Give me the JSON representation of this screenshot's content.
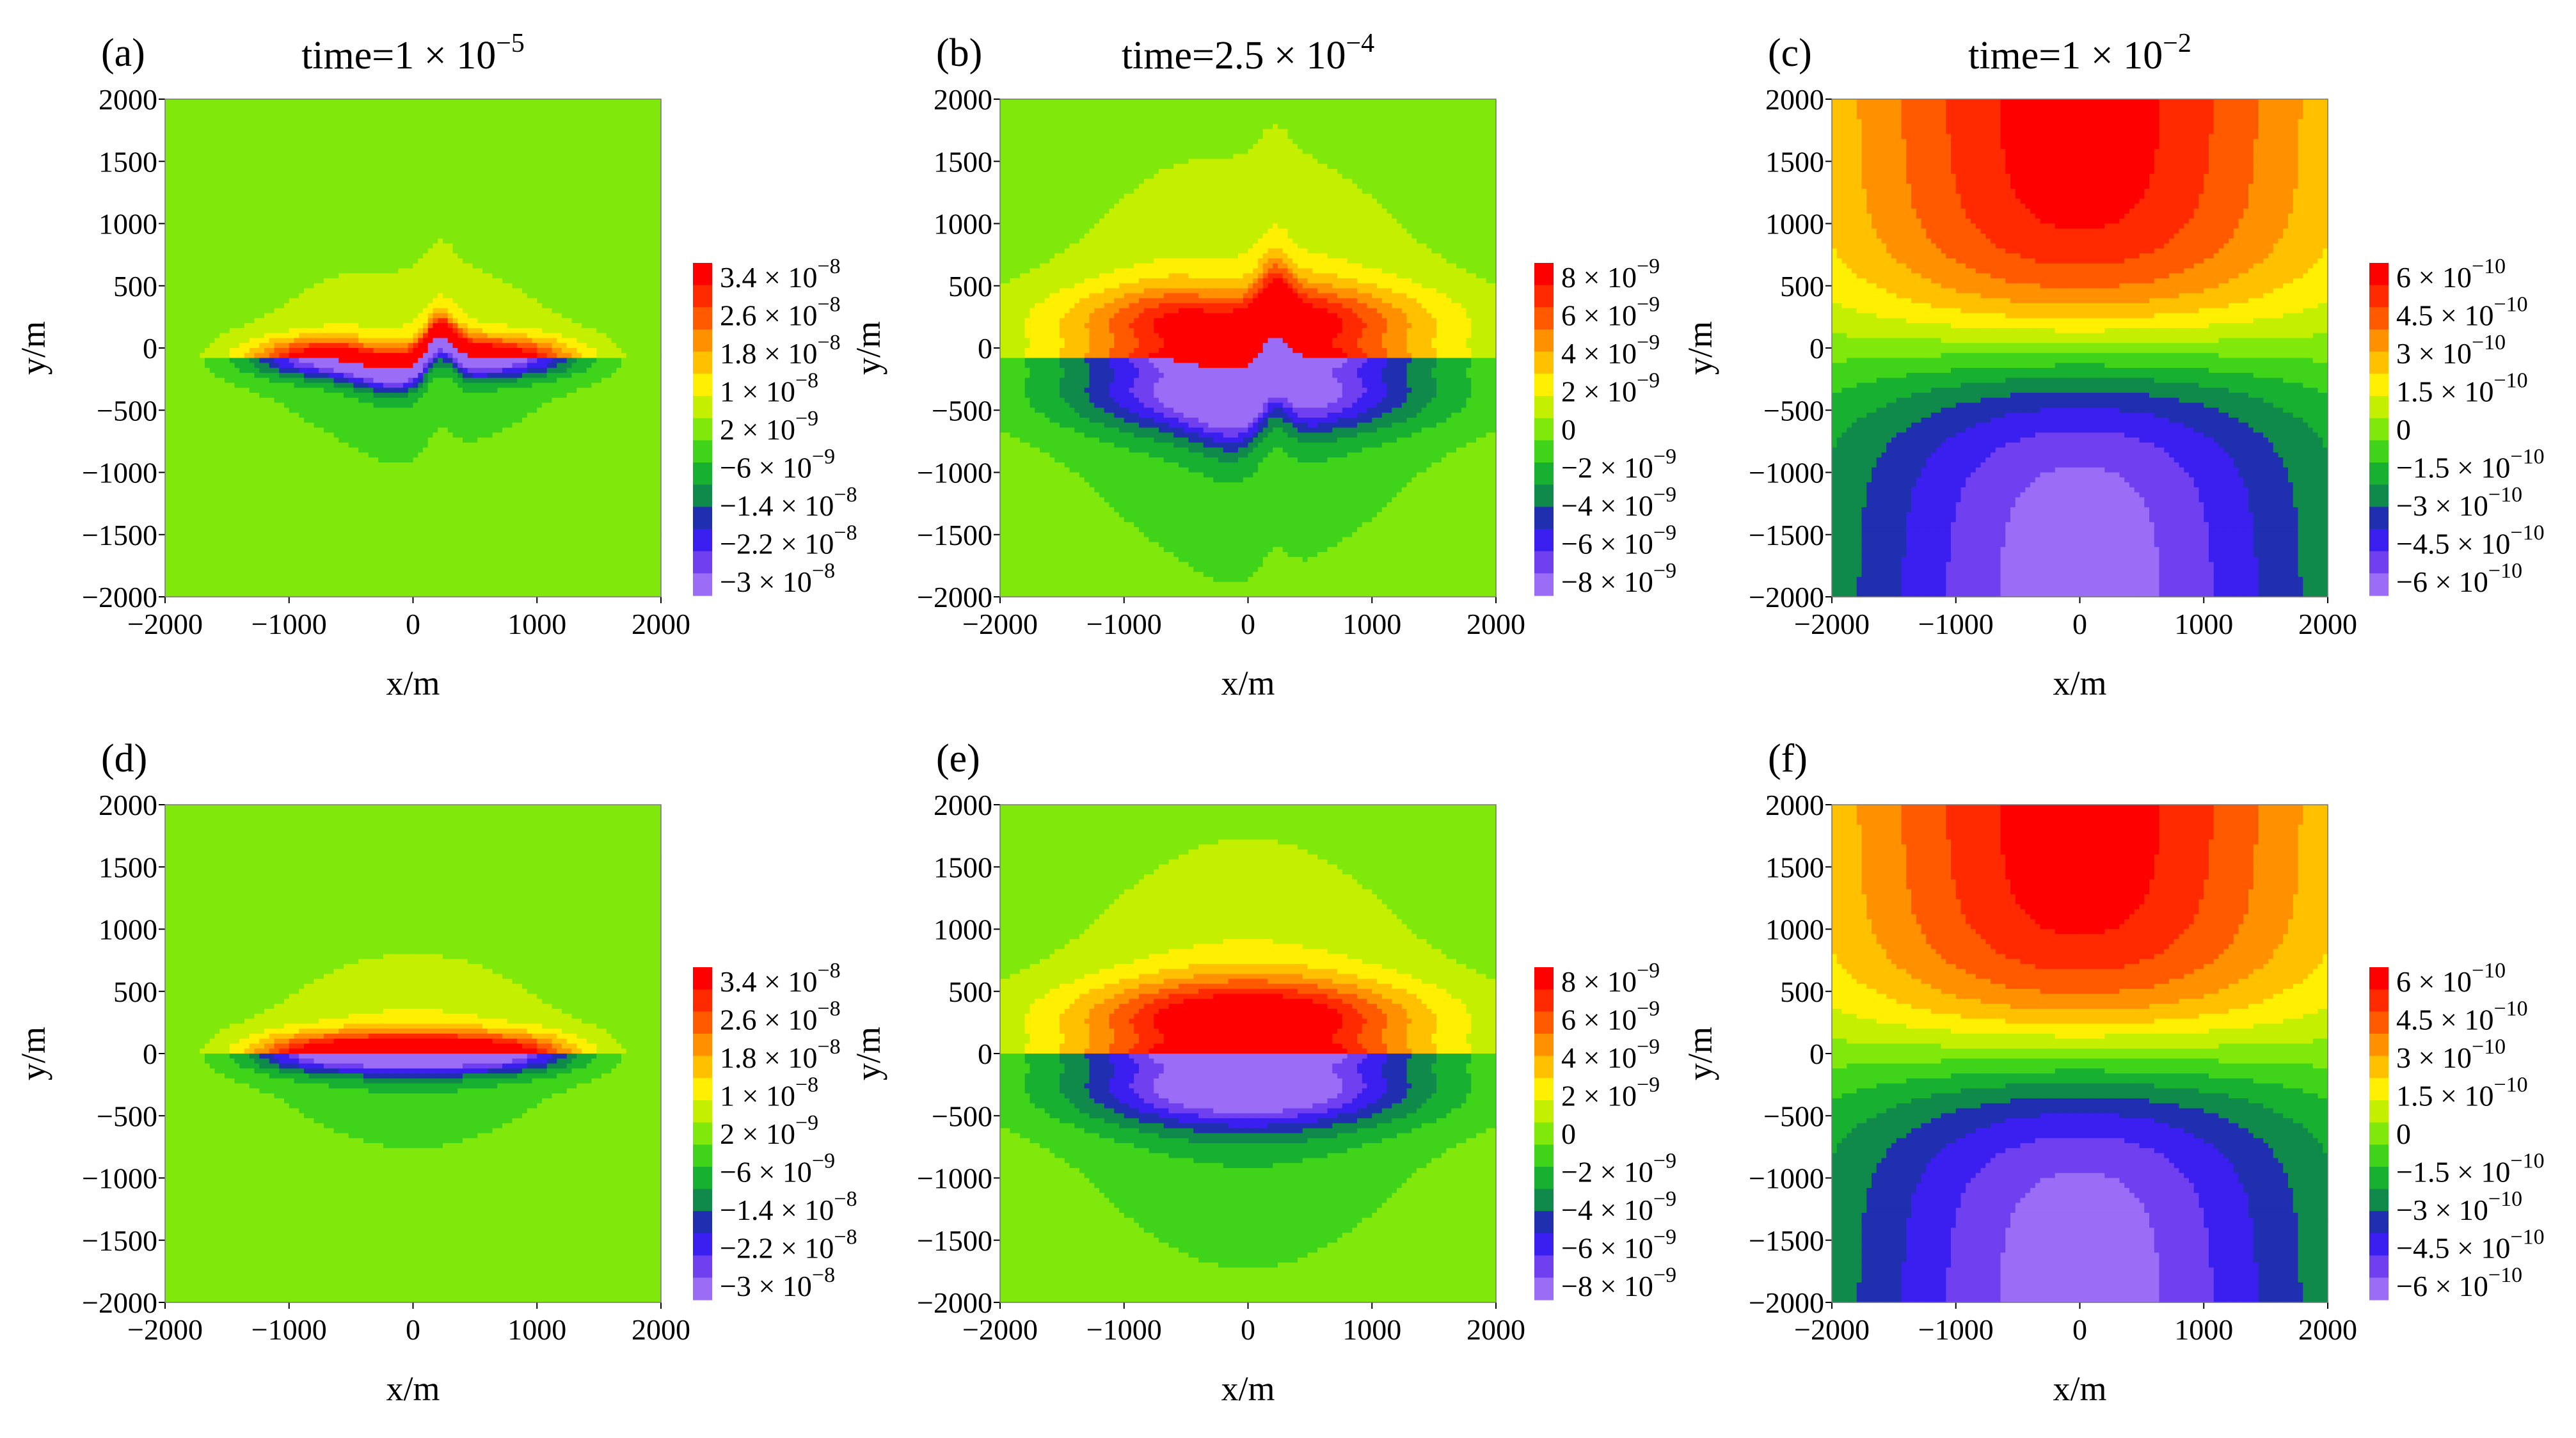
{
  "chart_data": [
    {
      "id": "a",
      "type": "heatmap",
      "panel_label": "(a)",
      "title_prefix": "time=1 × 10",
      "title_exp": "−5",
      "xlabel": "x/m",
      "ylabel": "y/m",
      "x_ticks": [
        "−2000",
        "−1000",
        "0",
        "1000",
        "2000"
      ],
      "y_ticks": [
        "2000",
        "1500",
        "1000",
        "500",
        "0",
        "−500",
        "−1000",
        "−1500",
        "−2000"
      ],
      "xlim": [
        -2000,
        2000
      ],
      "ylim": [
        -2000,
        2000
      ],
      "colorbar": [
        "3.4 × 10^−8",
        "2.6 × 10^−8",
        "1.8 × 10^−8",
        "1 × 10^−8",
        "2 × 10^−9",
        "−6 × 10^−9",
        "−1.4 × 10^−8",
        "−2.2 × 10^−8",
        "−3 × 10^−8"
      ],
      "field": "early",
      "bump": true
    },
    {
      "id": "b",
      "type": "heatmap",
      "panel_label": "(b)",
      "title_prefix": "time=2.5 × 10",
      "title_exp": "−4",
      "xlabel": "x/m",
      "ylabel": "y/m",
      "x_ticks": [
        "−2000",
        "−1000",
        "0",
        "1000",
        "2000"
      ],
      "y_ticks": [
        "2000",
        "1500",
        "1000",
        "500",
        "0",
        "−500",
        "−1000",
        "−1500",
        "−2000"
      ],
      "xlim": [
        -2000,
        2000
      ],
      "ylim": [
        -2000,
        2000
      ],
      "colorbar": [
        "8 × 10^−9",
        "6 × 10^−9",
        "4 × 10^−9",
        "2 × 10^−9",
        "0",
        "−2 × 10^−9",
        "−4 × 10^−9",
        "−6 × 10^−9",
        "−8 × 10^−9"
      ],
      "field": "mid",
      "bump": true
    },
    {
      "id": "c",
      "type": "heatmap",
      "panel_label": "(c)",
      "title_prefix": "time=1 × 10",
      "title_exp": "−2",
      "xlabel": "x/m",
      "ylabel": "y/m",
      "x_ticks": [
        "−2000",
        "−1000",
        "0",
        "1000",
        "2000"
      ],
      "y_ticks": [
        "2000",
        "1500",
        "1000",
        "500",
        "0",
        "−500",
        "−1000",
        "−1500",
        "−2000"
      ],
      "xlim": [
        -2000,
        2000
      ],
      "ylim": [
        -2000,
        2000
      ],
      "colorbar": [
        "6 × 10^−10",
        "4.5 × 10^−10",
        "3 × 10^−10",
        "1.5 × 10^−10",
        "0",
        "−1.5 × 10^−10",
        "−3 × 10^−10",
        "−4.5 × 10^−10",
        "−6 × 10^−10"
      ],
      "field": "late",
      "bump": false
    },
    {
      "id": "d",
      "type": "heatmap",
      "panel_label": "(d)",
      "title_prefix": "",
      "title_exp": "",
      "xlabel": "x/m",
      "ylabel": "y/m",
      "x_ticks": [
        "−2000",
        "−1000",
        "0",
        "1000",
        "2000"
      ],
      "y_ticks": [
        "2000",
        "1500",
        "1000",
        "500",
        "0",
        "−500",
        "−1000",
        "−1500",
        "−2000"
      ],
      "xlim": [
        -2000,
        2000
      ],
      "ylim": [
        -2000,
        2000
      ],
      "colorbar": [
        "3.4 × 10^−8",
        "2.6 × 10^−8",
        "1.8 × 10^−8",
        "1 × 10^−8",
        "2 × 10^−9",
        "−6 × 10^−9",
        "−1.4 × 10^−8",
        "−2.2 × 10^−8",
        "−3 × 10^−8"
      ],
      "field": "early",
      "bump": false
    },
    {
      "id": "e",
      "type": "heatmap",
      "panel_label": "(e)",
      "title_prefix": "",
      "title_exp": "",
      "xlabel": "x/m",
      "ylabel": "y/m",
      "x_ticks": [
        "−2000",
        "−1000",
        "0",
        "1000",
        "2000"
      ],
      "y_ticks": [
        "2000",
        "1500",
        "1000",
        "500",
        "0",
        "−500",
        "−1000",
        "−1500",
        "−2000"
      ],
      "xlim": [
        -2000,
        2000
      ],
      "ylim": [
        -2000,
        2000
      ],
      "colorbar": [
        "8 × 10^−9",
        "6 × 10^−9",
        "4 × 10^−9",
        "2 × 10^−9",
        "0",
        "−2 × 10^−9",
        "−4 × 10^−9",
        "−6 × 10^−9",
        "−8 × 10^−9"
      ],
      "field": "mid",
      "bump": false
    },
    {
      "id": "f",
      "type": "heatmap",
      "panel_label": "(f)",
      "title_prefix": "",
      "title_exp": "",
      "xlabel": "x/m",
      "ylabel": "y/m",
      "x_ticks": [
        "−2000",
        "−1000",
        "0",
        "1000",
        "2000"
      ],
      "y_ticks": [
        "2000",
        "1500",
        "1000",
        "500",
        "0",
        "−500",
        "−1000",
        "−1500",
        "−2000"
      ],
      "xlim": [
        -2000,
        2000
      ],
      "ylim": [
        -2000,
        2000
      ],
      "colorbar": [
        "6 × 10^−10",
        "4.5 × 10^−10",
        "3 × 10^−10",
        "1.5 × 10^−10",
        "0",
        "−1.5 × 10^−10",
        "−3 × 10^−10",
        "−4.5 × 10^−10",
        "−6 × 10^−10"
      ],
      "field": "late",
      "bump": false
    }
  ],
  "colors": {
    "scale": [
      "#9b6cf5",
      "#7040f0",
      "#3b1ef0",
      "#1f2fb0",
      "#0f8a4a",
      "#18b030",
      "#3fd41a",
      "#80e80a",
      "#c4f000",
      "#ffef00",
      "#ffc000",
      "#ff9000",
      "#ff5a00",
      "#ff2a00",
      "#ff0000"
    ]
  }
}
